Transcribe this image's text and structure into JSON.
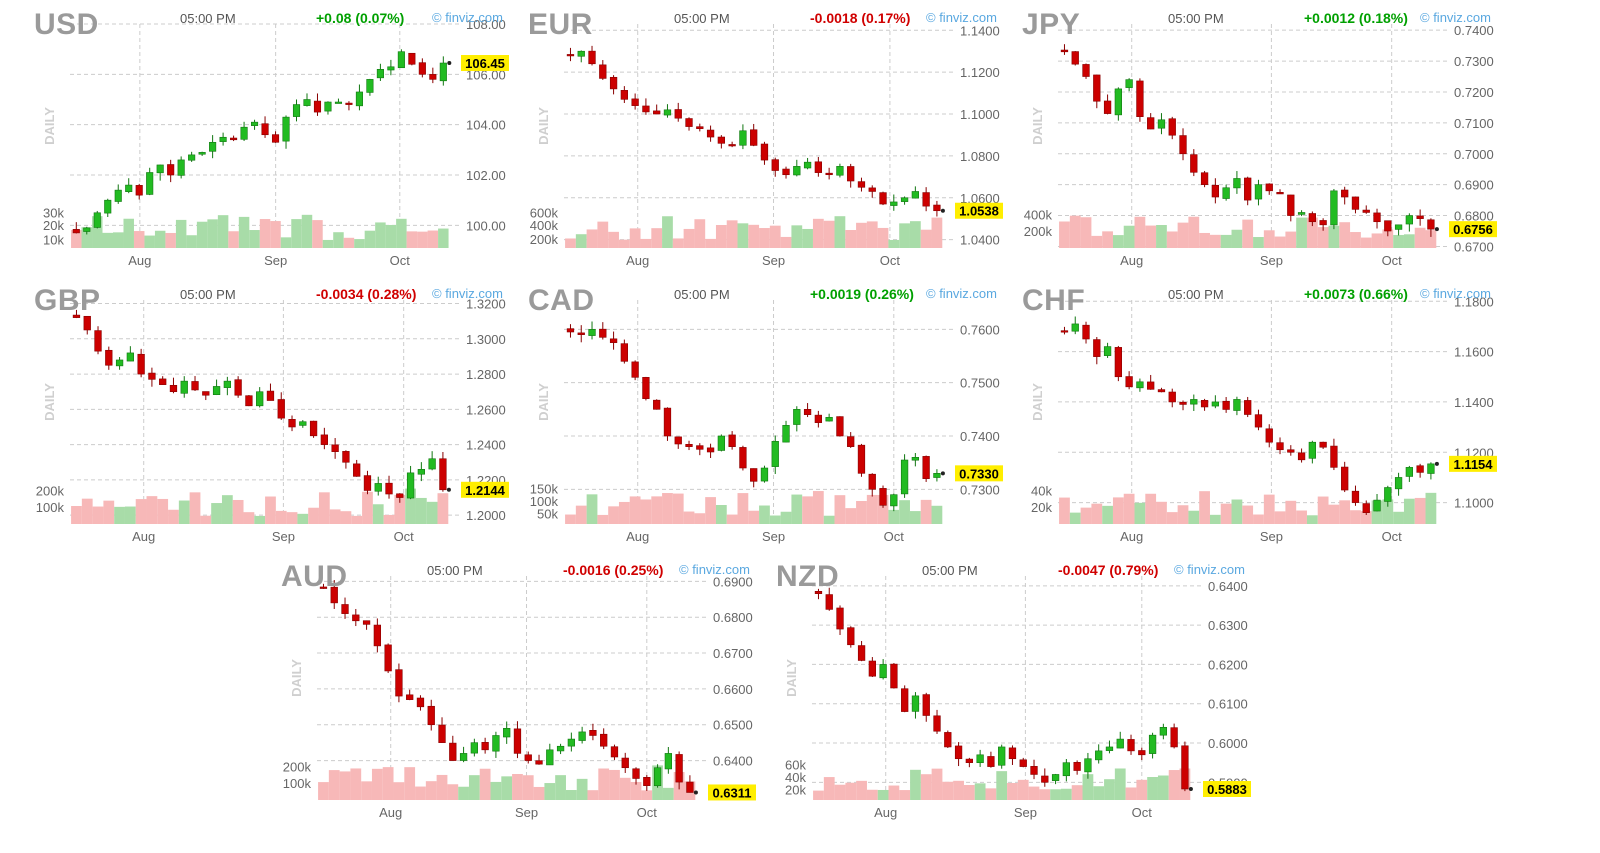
{
  "colors": {
    "up": "#22bb22",
    "down": "#cc0000",
    "vol_up": "#a8dca8",
    "vol_down": "#f7b8b8",
    "grid": "#cccccc",
    "price_box": "#ffee00"
  },
  "chart_data": [
    {
      "type": "candlestick",
      "symbol": "USD",
      "time": "05:00 PM",
      "change": "+0.08 (0.07%)",
      "direction": "up",
      "brand": "© finviz.com",
      "side_label": "DAILY",
      "ylim": [
        99.1,
        108.0
      ],
      "y_ticks": [
        "108.00",
        "106.00",
        "104.00",
        "102.00",
        "100.00"
      ],
      "y_tick_values": [
        108,
        106,
        104,
        102,
        100
      ],
      "last": 106.45,
      "last_label": "106.45",
      "x_labels": [
        "Aug",
        "Sep",
        "Oct"
      ],
      "x_label_pos": [
        0.18,
        0.53,
        0.85
      ],
      "vol_labels": [
        "30k",
        "20k",
        "10k"
      ],
      "vol_label_pos": [
        0.85,
        0.55,
        0.2
      ],
      "path": [
        99.7,
        99.9,
        100.5,
        101.0,
        101.4,
        101.6,
        101.2,
        102.1,
        102.4,
        102.0,
        102.6,
        102.8,
        102.9,
        103.3,
        103.5,
        103.4,
        103.9,
        104.1,
        103.6,
        103.3,
        104.3,
        104.8,
        105.0,
        104.5,
        104.9,
        104.9,
        104.8,
        105.3,
        105.8,
        106.2,
        106.3,
        106.9,
        106.4,
        106.0,
        105.8,
        106.45
      ]
    },
    {
      "type": "candlestick",
      "symbol": "EUR",
      "time": "05:00 PM",
      "change": "-0.0018 (0.17%)",
      "direction": "down",
      "brand": "© finviz.com",
      "side_label": "DAILY",
      "ylim": [
        1.036,
        1.143
      ],
      "y_ticks": [
        "1.1400",
        "1.1200",
        "1.1000",
        "1.0800",
        "1.0600",
        "1.0400"
      ],
      "y_tick_values": [
        1.14,
        1.12,
        1.1,
        1.08,
        1.06,
        1.04
      ],
      "last": 1.0538,
      "last_label": "1.0538",
      "x_labels": [
        "Aug",
        "Sep",
        "Oct"
      ],
      "x_label_pos": [
        0.19,
        0.54,
        0.84
      ],
      "vol_labels": [
        "600k",
        "400k",
        "200k"
      ],
      "vol_label_pos": [
        0.85,
        0.55,
        0.22
      ],
      "path": [
        1.128,
        1.13,
        1.124,
        1.117,
        1.112,
        1.107,
        1.104,
        1.101,
        1.1,
        1.102,
        1.098,
        1.094,
        1.093,
        1.089,
        1.086,
        1.085,
        1.092,
        1.085,
        1.078,
        1.073,
        1.071,
        1.075,
        1.077,
        1.072,
        1.071,
        1.075,
        1.068,
        1.065,
        1.063,
        1.057,
        1.058,
        1.06,
        1.063,
        1.056,
        1.0538
      ]
    },
    {
      "type": "candlestick",
      "symbol": "JPY",
      "time": "05:00 PM",
      "change": "+0.0012 (0.18%)",
      "direction": "up",
      "brand": "© finviz.com",
      "side_label": "DAILY",
      "ylim": [
        0.6695,
        0.742
      ],
      "y_ticks": [
        "0.7400",
        "0.7300",
        "0.7200",
        "0.7100",
        "0.7000",
        "0.6900",
        "0.6800",
        "0.6700"
      ],
      "y_tick_values": [
        0.74,
        0.73,
        0.72,
        0.71,
        0.7,
        0.69,
        0.68,
        0.67
      ],
      "last": 0.6756,
      "last_label": "0.6756",
      "x_labels": [
        "Aug",
        "Sep",
        "Oct"
      ],
      "x_label_pos": [
        0.19,
        0.55,
        0.86
      ],
      "vol_labels": [
        "400k",
        "200k"
      ],
      "vol_label_pos": [
        0.8,
        0.4
      ],
      "path": [
        0.733,
        0.729,
        0.725,
        0.717,
        0.713,
        0.721,
        0.724,
        0.712,
        0.708,
        0.711,
        0.706,
        0.7,
        0.694,
        0.69,
        0.686,
        0.689,
        0.692,
        0.685,
        0.69,
        0.688,
        0.687,
        0.68,
        0.681,
        0.678,
        0.677,
        0.688,
        0.686,
        0.682,
        0.681,
        0.678,
        0.675,
        0.677,
        0.68,
        0.679,
        0.6756
      ]
    },
    {
      "type": "candlestick",
      "symbol": "GBP",
      "time": "05:00 PM",
      "change": "-0.0034 (0.28%)",
      "direction": "down",
      "brand": "© finviz.com",
      "side_label": "DAILY",
      "ylim": [
        1.195,
        1.322
      ],
      "y_ticks": [
        "1.3200",
        "1.3000",
        "1.2800",
        "1.2600",
        "1.2400",
        "1.2200",
        "1.2000"
      ],
      "y_tick_values": [
        1.32,
        1.3,
        1.28,
        1.26,
        1.24,
        1.22,
        1.2
      ],
      "last": 1.2144,
      "last_label": "1.2144",
      "x_labels": [
        "Aug",
        "Sep",
        "Oct"
      ],
      "x_label_pos": [
        0.19,
        0.55,
        0.86
      ],
      "vol_labels": [
        "200k",
        "100k"
      ],
      "vol_label_pos": [
        0.8,
        0.4
      ],
      "path": [
        1.312,
        1.305,
        1.293,
        1.285,
        1.288,
        1.292,
        1.28,
        1.277,
        1.274,
        1.27,
        1.276,
        1.271,
        1.268,
        1.273,
        1.276,
        1.268,
        1.262,
        1.27,
        1.265,
        1.255,
        1.25,
        1.253,
        1.245,
        1.24,
        1.236,
        1.23,
        1.222,
        1.214,
        1.218,
        1.212,
        1.21,
        1.224,
        1.226,
        1.232,
        1.2144
      ]
    },
    {
      "type": "candlestick",
      "symbol": "CAD",
      "time": "05:00 PM",
      "change": "+0.0019 (0.26%)",
      "direction": "up",
      "brand": "© finviz.com",
      "side_label": "DAILY",
      "ylim": [
        0.7235,
        0.7655
      ],
      "y_ticks": [
        "0.7600",
        "0.7500",
        "0.7400",
        "0.7300"
      ],
      "y_tick_values": [
        0.76,
        0.75,
        0.74,
        0.73
      ],
      "last": 0.733,
      "last_label": "0.7330",
      "x_labels": [
        "Aug",
        "Sep",
        "Oct"
      ],
      "x_label_pos": [
        0.19,
        0.54,
        0.85
      ],
      "vol_labels": [
        "150k",
        "100k",
        "50k"
      ],
      "vol_label_pos": [
        0.85,
        0.55,
        0.25
      ],
      "path": [
        0.7595,
        0.759,
        0.76,
        0.7585,
        0.7575,
        0.754,
        0.751,
        0.747,
        0.745,
        0.74,
        0.7385,
        0.738,
        0.7375,
        0.737,
        0.74,
        0.738,
        0.734,
        0.7315,
        0.734,
        0.739,
        0.742,
        0.745,
        0.744,
        0.7425,
        0.7435,
        0.74,
        0.738,
        0.733,
        0.73,
        0.727,
        0.729,
        0.7355,
        0.736,
        0.732,
        0.733
      ]
    },
    {
      "type": "candlestick",
      "symbol": "CHF",
      "time": "05:00 PM",
      "change": "+0.0073 (0.66%)",
      "direction": "up",
      "brand": "© finviz.com",
      "side_label": "DAILY",
      "ylim": [
        1.0915,
        1.1805
      ],
      "y_ticks": [
        "1.1800",
        "1.1600",
        "1.1400",
        "1.1200",
        "1.1000"
      ],
      "y_tick_values": [
        1.18,
        1.16,
        1.14,
        1.12,
        1.1
      ],
      "last": 1.1154,
      "last_label": "1.1154",
      "x_labels": [
        "Aug",
        "Sep",
        "Oct"
      ],
      "x_label_pos": [
        0.19,
        0.55,
        0.86
      ],
      "vol_labels": [
        "40k",
        "20k"
      ],
      "vol_label_pos": [
        0.8,
        0.4
      ],
      "path": [
        1.168,
        1.171,
        1.165,
        1.158,
        1.162,
        1.15,
        1.146,
        1.148,
        1.145,
        1.144,
        1.14,
        1.139,
        1.141,
        1.138,
        1.14,
        1.137,
        1.141,
        1.135,
        1.13,
        1.124,
        1.121,
        1.12,
        1.117,
        1.124,
        1.122,
        1.114,
        1.105,
        1.1,
        1.096,
        1.101,
        1.106,
        1.11,
        1.114,
        1.112,
        1.1154
      ]
    },
    {
      "type": "candlestick",
      "symbol": "AUD",
      "time": "05:00 PM",
      "change": "-0.0016 (0.25%)",
      "direction": "down",
      "brand": "© finviz.com",
      "side_label": "DAILY",
      "ylim": [
        0.629,
        0.6915
      ],
      "y_ticks": [
        "0.6900",
        "0.6800",
        "0.6700",
        "0.6600",
        "0.6500",
        "0.6400"
      ],
      "y_tick_values": [
        0.69,
        0.68,
        0.67,
        0.66,
        0.65,
        0.64
      ],
      "last": 0.6311,
      "last_label": "0.6311",
      "x_labels": [
        "Aug",
        "Sep",
        "Oct"
      ],
      "x_label_pos": [
        0.19,
        0.54,
        0.85
      ],
      "vol_labels": [
        "200k",
        "100k"
      ],
      "vol_label_pos": [
        0.8,
        0.4
      ],
      "path": [
        0.688,
        0.684,
        0.681,
        0.679,
        0.678,
        0.672,
        0.665,
        0.658,
        0.657,
        0.655,
        0.65,
        0.645,
        0.64,
        0.642,
        0.645,
        0.643,
        0.647,
        0.649,
        0.642,
        0.64,
        0.639,
        0.643,
        0.644,
        0.646,
        0.648,
        0.647,
        0.644,
        0.641,
        0.638,
        0.635,
        0.633,
        0.638,
        0.642,
        0.634,
        0.6311
      ]
    },
    {
      "type": "candlestick",
      "symbol": "NZD",
      "time": "05:00 PM",
      "change": "-0.0047 (0.79%)",
      "direction": "down",
      "brand": "© finviz.com",
      "side_label": "DAILY",
      "ylim": [
        0.5855,
        0.6425
      ],
      "y_ticks": [
        "0.6400",
        "0.6300",
        "0.6200",
        "0.6100",
        "0.6000",
        "0.5900"
      ],
      "y_tick_values": [
        0.64,
        0.63,
        0.62,
        0.61,
        0.6,
        0.59
      ],
      "last": 0.5883,
      "last_label": "0.5883",
      "x_labels": [
        "Aug",
        "Sep",
        "Oct"
      ],
      "x_label_pos": [
        0.19,
        0.55,
        0.85
      ],
      "vol_labels": [
        "60k",
        "40k",
        "20k"
      ],
      "vol_label_pos": [
        0.85,
        0.55,
        0.25
      ],
      "path": [
        0.638,
        0.634,
        0.629,
        0.625,
        0.621,
        0.617,
        0.62,
        0.614,
        0.608,
        0.612,
        0.607,
        0.603,
        0.599,
        0.596,
        0.595,
        0.597,
        0.594,
        0.599,
        0.596,
        0.594,
        0.592,
        0.59,
        0.592,
        0.595,
        0.593,
        0.596,
        0.598,
        0.599,
        0.601,
        0.598,
        0.597,
        0.602,
        0.604,
        0.599,
        0.5883
      ]
    }
  ]
}
